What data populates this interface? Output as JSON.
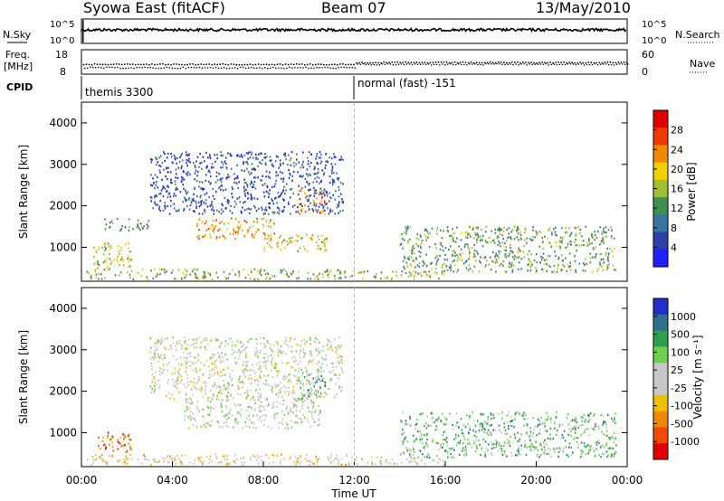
{
  "header": {
    "station": "Syowa East (fitACF)",
    "beam": "Beam 07",
    "date": "13/May/2010"
  },
  "top_panel": {
    "nsky_label": "N.Sky",
    "nsearch_label": "N.Search",
    "nsky_ticks": [
      "10^5",
      "10^0"
    ],
    "nsearch_ticks": [
      "10^5",
      "10^0"
    ],
    "freq_label_line1": "Freq.",
    "freq_label_line2": "[MHz]",
    "freq_ticks": [
      "18",
      "8"
    ],
    "nave_label": "Nave",
    "nave_ticks": [
      "60",
      "0"
    ],
    "cpid_label": "CPID",
    "cpid_segments": [
      {
        "label": "themis 3300",
        "start_hour": 0,
        "end_hour": 12
      },
      {
        "label": "normal (fast) -151",
        "start_hour": 12,
        "end_hour": 24
      }
    ],
    "freq_series": {
      "first_half": 11.5,
      "second_half": 12.3
    },
    "nave_series": {
      "first_half": 12,
      "second_half": 21
    }
  },
  "x_axis": {
    "label": "Time UT",
    "ticks": [
      "00:00",
      "04:00",
      "08:00",
      "12:00",
      "16:00",
      "20:00",
      "00:00"
    ],
    "tick_hours": [
      0,
      4,
      8,
      12,
      16,
      20,
      24
    ],
    "range": [
      0,
      24
    ]
  },
  "colors": {
    "power": [
      "#1f1fff",
      "#2a3fa8",
      "#3a72a0",
      "#3f8f4f",
      "#9fbf2f",
      "#f0d000",
      "#f08a00",
      "#f03a00",
      "#e00000"
    ],
    "velocity": [
      "#1f2fc8",
      "#2f6f8f",
      "#2f9f4f",
      "#6fd04f",
      "#c8c8c8",
      "#c8c8c8",
      "#f0c000",
      "#f08a00",
      "#f04a00",
      "#e00000"
    ]
  },
  "chart_data": [
    {
      "type": "heatmap",
      "title": "Power",
      "ylabel": "Slant Range [km]",
      "xlabel": "",
      "ylim": [
        180,
        4500
      ],
      "yticks": [
        1000,
        2000,
        3000,
        4000
      ],
      "colorbar": {
        "label": "Power [dB]",
        "range": [
          0,
          32
        ],
        "ticks": [
          4,
          8,
          12,
          16,
          20,
          24,
          28
        ]
      },
      "regions": [
        {
          "name": "near-range band",
          "t": [
            0.2,
            12.0
          ],
          "r": [
            220,
            480
          ],
          "level": 0.45
        },
        {
          "name": "scatter 1",
          "t": [
            0.5,
            2.2
          ],
          "r": [
            500,
            1100
          ],
          "level": 0.55
        },
        {
          "name": "scatter 2",
          "t": [
            1.0,
            3.0
          ],
          "r": [
            1400,
            1700
          ],
          "level": 0.3
        },
        {
          "name": "main echo band",
          "t": [
            5.0,
            8.5
          ],
          "r": [
            1200,
            1700
          ],
          "level": 0.7
        },
        {
          "name": "arc",
          "t": [
            8.0,
            10.8
          ],
          "r": [
            900,
            1300
          ],
          "level": 0.6
        },
        {
          "name": "upper echo",
          "t": [
            9.5,
            10.7
          ],
          "r": [
            1800,
            2400
          ],
          "level": 0.75
        },
        {
          "name": "mid-range scatter",
          "t": [
            3.0,
            11.5
          ],
          "r": [
            1800,
            3300
          ],
          "level": 0.15
        },
        {
          "name": "post-noon band",
          "t": [
            12.0,
            16.0
          ],
          "r": [
            230,
            420
          ],
          "level": 0.55
        },
        {
          "name": "evening scatter",
          "t": [
            14.0,
            23.5
          ],
          "r": [
            400,
            1500
          ],
          "level": 0.4
        }
      ]
    },
    {
      "type": "heatmap",
      "title": "Velocity",
      "ylabel": "Slant Range [km]",
      "xlabel": "Time UT",
      "ylim": [
        180,
        4500
      ],
      "yticks": [
        1000,
        2000,
        3000,
        4000
      ],
      "colorbar": {
        "label": "Velocity [m s⁻¹]",
        "ticks": [
          1000,
          500,
          100,
          25,
          -25,
          -100,
          -500,
          -1000
        ]
      },
      "regions": [
        {
          "name": "near-range band",
          "t": [
            0.2,
            12.0
          ],
          "r": [
            220,
            480
          ],
          "level": 0.6
        },
        {
          "name": "recede patch",
          "t": [
            0.7,
            2.2
          ],
          "r": [
            500,
            1000
          ],
          "level": 0.85
        },
        {
          "name": "ground scatter band",
          "t": [
            4.5,
            10.5
          ],
          "r": [
            1100,
            1800
          ],
          "level": 0.45
        },
        {
          "name": "upper echo",
          "t": [
            9.5,
            10.7
          ],
          "r": [
            1800,
            2400
          ],
          "level": 0.2
        },
        {
          "name": "mid-range scatter",
          "t": [
            3.0,
            11.5
          ],
          "r": [
            1800,
            3300
          ],
          "level": 0.5
        },
        {
          "name": "post-noon band",
          "t": [
            12.0,
            16.0
          ],
          "r": [
            230,
            420
          ],
          "level": 0.5
        },
        {
          "name": "evening scatter",
          "t": [
            14.0,
            23.5
          ],
          "r": [
            400,
            1500
          ],
          "level": 0.3
        }
      ]
    }
  ]
}
